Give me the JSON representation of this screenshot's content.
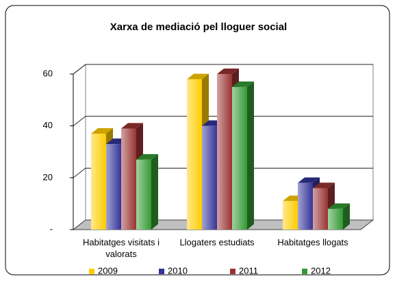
{
  "chart_data": {
    "type": "bar3d",
    "title": "Xarxa de mediació pel lloguer social",
    "categories": [
      "Habitatges visitats i valorats",
      "Llogaters estudiats",
      "Habitatges llogats"
    ],
    "series": [
      {
        "name": "2009",
        "color": "#ffcc00",
        "values": [
          37,
          58,
          11
        ]
      },
      {
        "name": "2010",
        "color": "#333399",
        "values": [
          33,
          40,
          18
        ]
      },
      {
        "name": "2011",
        "color": "#993333",
        "values": [
          39,
          60,
          16
        ]
      },
      {
        "name": "2012",
        "color": "#339933",
        "values": [
          27,
          55,
          8
        ]
      }
    ],
    "ylim": [
      0,
      60
    ],
    "yticks": [
      {
        "value": 0,
        "label": "-"
      },
      20,
      40,
      60
    ],
    "grid": true,
    "legend": "bottom"
  }
}
